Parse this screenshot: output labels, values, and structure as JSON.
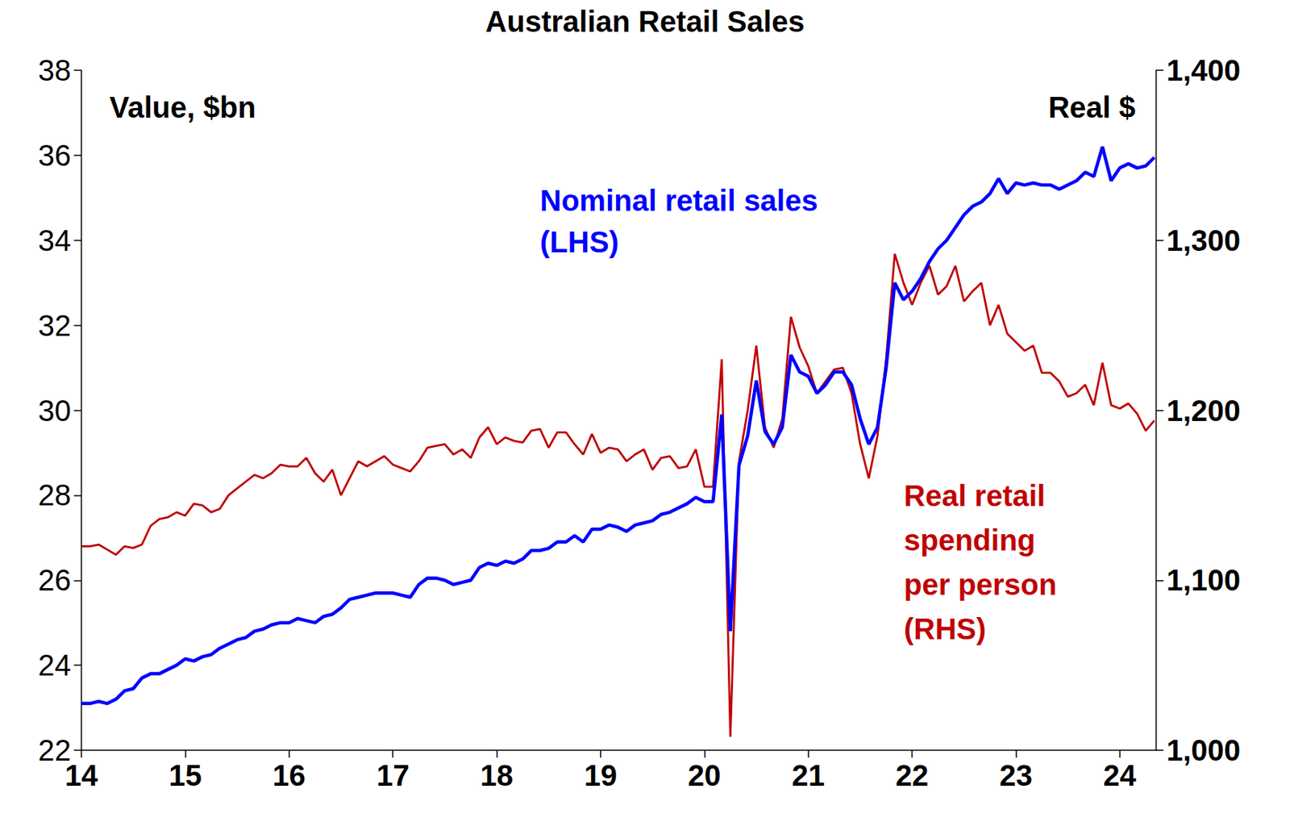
{
  "chart_data": {
    "type": "line",
    "title": "Australian Retail Sales",
    "ylabel": "Value, $bn",
    "y2label": "Real $",
    "x": [
      14,
      14.083,
      14.167,
      14.25,
      14.333,
      14.417,
      14.5,
      14.583,
      14.667,
      14.75,
      14.833,
      14.917,
      15,
      15.083,
      15.167,
      15.25,
      15.333,
      15.417,
      15.5,
      15.583,
      15.667,
      15.75,
      15.833,
      15.917,
      16,
      16.083,
      16.167,
      16.25,
      16.333,
      16.417,
      16.5,
      16.583,
      16.667,
      16.75,
      16.833,
      16.917,
      17,
      17.083,
      17.167,
      17.25,
      17.333,
      17.417,
      17.5,
      17.583,
      17.667,
      17.75,
      17.833,
      17.917,
      18,
      18.083,
      18.167,
      18.25,
      18.333,
      18.417,
      18.5,
      18.583,
      18.667,
      18.75,
      18.833,
      18.917,
      19,
      19.083,
      19.167,
      19.25,
      19.333,
      19.417,
      19.5,
      19.583,
      19.667,
      19.75,
      19.833,
      19.917,
      20,
      20.083,
      20.167,
      20.25,
      20.333,
      20.417,
      20.5,
      20.583,
      20.667,
      20.75,
      20.833,
      20.917,
      21,
      21.083,
      21.167,
      21.25,
      21.333,
      21.417,
      21.5,
      21.583,
      21.667,
      21.75,
      21.833,
      21.917,
      22,
      22.083,
      22.167,
      22.25,
      22.333,
      22.417,
      22.5,
      22.583,
      22.667,
      22.75,
      22.833,
      22.917,
      23,
      23.083,
      23.167,
      23.25,
      23.333,
      23.417,
      23.5,
      23.583,
      23.667,
      23.75,
      23.833,
      23.917,
      24,
      24.083,
      24.167,
      24.25,
      24.333
    ],
    "xlim": [
      14,
      24.35
    ],
    "xticks": [
      14,
      15,
      16,
      17,
      18,
      19,
      20,
      21,
      22,
      23,
      24
    ],
    "ylim": [
      22,
      38
    ],
    "yticks": [
      22,
      24,
      26,
      28,
      30,
      32,
      34,
      36,
      38
    ],
    "y2lim": [
      1000,
      1400
    ],
    "y2ticks": [
      {
        "value": 1000,
        "label": "1,000"
      },
      {
        "value": 1100,
        "label": "1,100"
      },
      {
        "value": 1200,
        "label": "1,200"
      },
      {
        "value": 1300,
        "label": "1,300"
      },
      {
        "value": 1400,
        "label": "1,400"
      }
    ],
    "grid": false,
    "series": [
      {
        "name": "Nominal retail sales\n(LHS)",
        "color": "#0000ff",
        "axis": "y",
        "values": [
          23.1,
          23.1,
          23.15,
          23.1,
          23.2,
          23.4,
          23.45,
          23.7,
          23.8,
          23.8,
          23.9,
          24.0,
          24.15,
          24.1,
          24.2,
          24.25,
          24.4,
          24.5,
          24.6,
          24.65,
          24.8,
          24.85,
          24.95,
          25.0,
          25.0,
          25.1,
          25.05,
          25.0,
          25.15,
          25.2,
          25.35,
          25.55,
          25.6,
          25.65,
          25.7,
          25.7,
          25.7,
          25.65,
          25.6,
          25.9,
          26.05,
          26.05,
          26.0,
          25.9,
          25.95,
          26.0,
          26.3,
          26.4,
          26.35,
          26.45,
          26.4,
          26.5,
          26.7,
          26.7,
          26.75,
          26.9,
          26.9,
          27.05,
          26.9,
          27.2,
          27.2,
          27.3,
          27.25,
          27.15,
          27.3,
          27.35,
          27.4,
          27.55,
          27.6,
          27.7,
          27.8,
          27.95,
          27.85,
          27.85,
          29.9,
          24.8,
          28.7,
          29.4,
          30.7,
          29.5,
          29.2,
          29.6,
          31.3,
          30.9,
          30.8,
          30.4,
          30.6,
          30.9,
          30.9,
          30.6,
          29.8,
          29.2,
          29.6,
          31.0,
          33.0,
          32.6,
          32.8,
          33.1,
          33.5,
          33.8,
          34.0,
          34.3,
          34.6,
          34.8,
          34.9,
          35.1,
          35.45,
          35.1,
          35.35,
          35.3,
          35.35,
          35.3,
          35.3,
          35.2,
          35.3,
          35.4,
          35.6,
          35.5,
          36.2,
          35.4,
          35.7,
          35.8,
          35.7,
          35.75,
          35.95
        ]
      },
      {
        "name": "Real retail\nspending\nper person\n(RHS)",
        "color": "#c00000",
        "axis": "y2",
        "values": [
          1120,
          1120,
          1121,
          1118,
          1115,
          1120,
          1119,
          1121,
          1132,
          1136,
          1137,
          1140,
          1138,
          1145,
          1144,
          1140,
          1142,
          1150,
          1154,
          1158,
          1162,
          1160,
          1163,
          1168,
          1167,
          1167,
          1172,
          1163,
          1158,
          1165,
          1150,
          1160,
          1170,
          1167,
          1170,
          1173,
          1168,
          1166,
          1164,
          1170,
          1178,
          1179,
          1180,
          1174,
          1177,
          1172,
          1184,
          1190,
          1180,
          1184,
          1182,
          1181,
          1188,
          1189,
          1178,
          1187,
          1187,
          1180,
          1174,
          1186,
          1175,
          1178,
          1177,
          1170,
          1174,
          1177,
          1165,
          1172,
          1173,
          1166,
          1167,
          1177,
          1155,
          1155,
          1230,
          1008,
          1170,
          1200,
          1238,
          1190,
          1178,
          1195,
          1255,
          1237,
          1226,
          1210,
          1217,
          1224,
          1225,
          1210,
          1180,
          1160,
          1185,
          1230,
          1292,
          1275,
          1262,
          1275,
          1285,
          1268,
          1273,
          1285,
          1264,
          1270,
          1275,
          1250,
          1262,
          1245,
          1240,
          1235,
          1238,
          1222,
          1222,
          1217,
          1208,
          1210,
          1215,
          1203,
          1228,
          1203,
          1201,
          1204,
          1198,
          1188,
          1194
        ]
      }
    ]
  }
}
